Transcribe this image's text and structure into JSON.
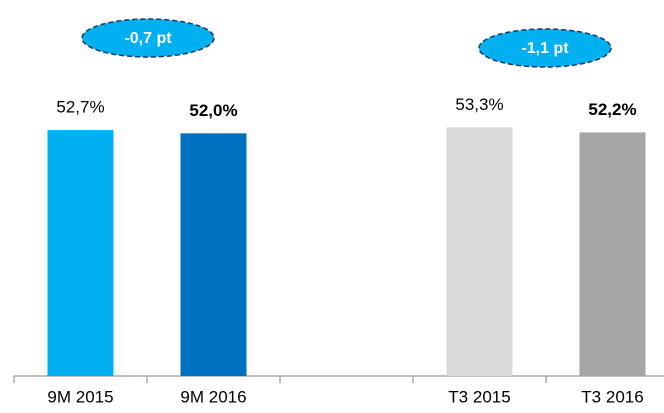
{
  "chart_data": {
    "type": "bar",
    "categories": [
      "9M 2015",
      "9M 2016",
      null,
      "T3 2015",
      "T3 2016"
    ],
    "values": [
      52.7,
      52.0,
      null,
      53.3,
      52.2
    ],
    "value_labels": [
      "52,7%",
      "52,0%",
      null,
      "53,3%",
      "52,2%"
    ],
    "value_label_bold": [
      false,
      true,
      null,
      false,
      true
    ],
    "colors": [
      "#00b0f0",
      "#0070c0",
      null,
      "#d9d9d9",
      "#a6a6a6"
    ],
    "ylim": [
      0,
      60
    ],
    "annotations": [
      "-0,7 pt",
      "-1,1 pt"
    ]
  }
}
